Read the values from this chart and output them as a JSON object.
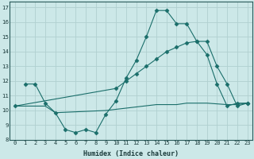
{
  "xlabel": "Humidex (Indice chaleur)",
  "bg_color": "#cce8e8",
  "grid_color": "#b0d0d0",
  "line_color": "#1a6e6a",
  "xlim": [
    -0.5,
    23.5
  ],
  "ylim": [
    8,
    17.4
  ],
  "xticks": [
    0,
    1,
    2,
    3,
    4,
    5,
    6,
    7,
    8,
    9,
    10,
    11,
    12,
    13,
    14,
    15,
    16,
    17,
    18,
    19,
    20,
    21,
    22,
    23
  ],
  "yticks": [
    8,
    9,
    10,
    11,
    12,
    13,
    14,
    15,
    16,
    17
  ],
  "line1_x": [
    1,
    2,
    3,
    4,
    5,
    6,
    7,
    8,
    9,
    10,
    11,
    12,
    13,
    14,
    15,
    16,
    17,
    18,
    19,
    20,
    21,
    22,
    23
  ],
  "line1_y": [
    11.8,
    11.8,
    10.5,
    9.85,
    8.7,
    8.5,
    8.7,
    8.5,
    9.75,
    10.65,
    12.2,
    13.4,
    15.0,
    16.8,
    16.8,
    15.9,
    15.9,
    14.7,
    13.8,
    11.8,
    10.3,
    10.5,
    10.5
  ],
  "line2_x": [
    0,
    2,
    3,
    4,
    9,
    14,
    15,
    16,
    17,
    18,
    19,
    21,
    22,
    23
  ],
  "line2_y": [
    10.3,
    10.3,
    10.3,
    9.85,
    10.0,
    10.4,
    10.4,
    10.4,
    10.5,
    10.5,
    10.5,
    10.4,
    10.4,
    10.5
  ],
  "line3_x": [
    0,
    10,
    11,
    12,
    13,
    14,
    15,
    16,
    17,
    18,
    19,
    20,
    21,
    22,
    23
  ],
  "line3_y": [
    10.3,
    11.5,
    12.0,
    12.5,
    13.0,
    13.5,
    14.0,
    14.3,
    14.6,
    14.7,
    14.7,
    13.0,
    11.8,
    10.3,
    10.5
  ]
}
